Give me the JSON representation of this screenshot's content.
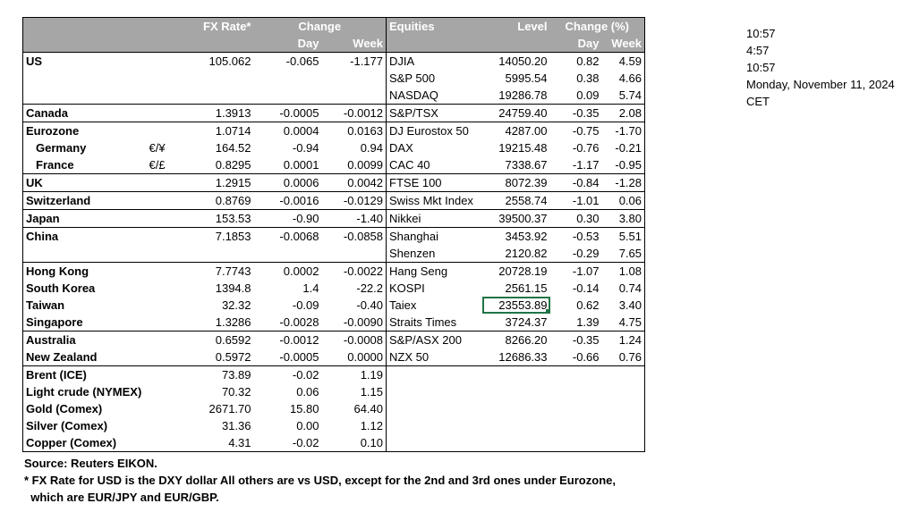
{
  "header": {
    "fx_rate": "FX Rate*",
    "change": "Change",
    "day": "Day",
    "week": "Week",
    "equities": "Equities",
    "level": "Level",
    "change_pct": "Change (%)",
    "day2": "Day",
    "week2": "Week"
  },
  "rows": [
    {
      "country": "US",
      "cur": "",
      "fx": "105.062",
      "chg_day": "-0.065",
      "chg_week": "-1.177",
      "eq": "DJIA",
      "level": "14050.20",
      "eq_day": "0.82",
      "eq_week": "4.59"
    },
    {
      "country": "",
      "cur": "",
      "fx": "",
      "chg_day": "",
      "chg_week": "",
      "eq": "S&P 500",
      "level": "5995.54",
      "eq_day": "0.38",
      "eq_week": "4.66"
    },
    {
      "country": "",
      "cur": "",
      "fx": "",
      "chg_day": "",
      "chg_week": "",
      "eq": "NASDAQ",
      "level": "19286.78",
      "eq_day": "0.09",
      "eq_week": "5.74"
    },
    {
      "country": "Canada",
      "cur": "",
      "fx": "1.3913",
      "chg_day": "-0.0005",
      "chg_week": "-0.0012",
      "eq": "S&P/TSX",
      "level": "24759.40",
      "eq_day": "-0.35",
      "eq_week": "2.08"
    },
    {
      "country": "Eurozone",
      "cur": "",
      "fx": "1.0714",
      "chg_day": "0.0004",
      "chg_week": "0.0163",
      "eq": "DJ Eurostox 50",
      "level": "4287.00",
      "eq_day": "-0.75",
      "eq_week": "-1.70"
    },
    {
      "country": "Germany",
      "cur": "€/¥",
      "fx": "164.52",
      "chg_day": "-0.94",
      "chg_week": "0.94",
      "eq": "DAX",
      "level": "19215.48",
      "eq_day": "-0.76",
      "eq_week": "-0.21"
    },
    {
      "country": "France",
      "cur": "€/£",
      "fx": "0.8295",
      "chg_day": "0.0001",
      "chg_week": "0.0099",
      "eq": "CAC 40",
      "level": "7338.67",
      "eq_day": "-1.17",
      "eq_week": "-0.95"
    },
    {
      "country": "UK",
      "cur": "",
      "fx": "1.2915",
      "chg_day": "0.0006",
      "chg_week": "0.0042",
      "eq": "FTSE 100",
      "level": "8072.39",
      "eq_day": "-0.84",
      "eq_week": "-1.28"
    },
    {
      "country": "Switzerland",
      "cur": "",
      "fx": "0.8769",
      "chg_day": "-0.0016",
      "chg_week": "-0.0129",
      "eq": "Swiss Mkt Index",
      "level": "2558.74",
      "eq_day": "-1.01",
      "eq_week": "0.06"
    },
    {
      "country": "Japan",
      "cur": "",
      "fx": "153.53",
      "chg_day": "-0.90",
      "chg_week": "-1.40",
      "eq": "Nikkei",
      "level": "39500.37",
      "eq_day": "0.30",
      "eq_week": "3.80"
    },
    {
      "country": "China",
      "cur": "",
      "fx": "7.1853",
      "chg_day": "-0.0068",
      "chg_week": "-0.0858",
      "eq": "Shanghai",
      "level": "3453.92",
      "eq_day": "-0.53",
      "eq_week": "5.51"
    },
    {
      "country": "",
      "cur": "",
      "fx": "",
      "chg_day": "",
      "chg_week": "",
      "eq": "Shenzen",
      "level": "2120.82",
      "eq_day": "-0.29",
      "eq_week": "7.65"
    },
    {
      "country": "Hong Kong",
      "cur": "",
      "fx": "7.7743",
      "chg_day": "0.0002",
      "chg_week": "-0.0022",
      "eq": "Hang Seng",
      "level": "20728.19",
      "eq_day": "-1.07",
      "eq_week": "1.08"
    },
    {
      "country": "South Korea",
      "cur": "",
      "fx": "1394.8",
      "chg_day": "1.4",
      "chg_week": "-22.2",
      "eq": "KOSPI",
      "level": "2561.15",
      "eq_day": "-0.14",
      "eq_week": "0.74"
    },
    {
      "country": "Taiwan",
      "cur": "",
      "fx": "32.32",
      "chg_day": "-0.09",
      "chg_week": "-0.40",
      "eq": "Taiex",
      "level": "23553.89",
      "eq_day": "0.62",
      "eq_week": "3.40"
    },
    {
      "country": "Singapore",
      "cur": "",
      "fx": "1.3286",
      "chg_day": "-0.0028",
      "chg_week": "-0.0090",
      "eq": "Straits Times",
      "level": "3724.37",
      "eq_day": "1.39",
      "eq_week": "4.75"
    },
    {
      "country": "Australia",
      "cur": "",
      "fx": "0.6592",
      "chg_day": "-0.0012",
      "chg_week": "-0.0008",
      "eq": "S&P/ASX  200",
      "level": "8266.20",
      "eq_day": "-0.35",
      "eq_week": "1.24"
    },
    {
      "country": "New Zealand",
      "cur": "",
      "fx": "0.5972",
      "chg_day": "-0.0005",
      "chg_week": "0.0000",
      "eq": "NZX 50",
      "level": "12686.33",
      "eq_day": "-0.66",
      "eq_week": "0.76"
    },
    {
      "country": "Brent (ICE)",
      "cur": "",
      "fx": "73.89",
      "chg_day": "-0.02",
      "chg_week": "1.19",
      "eq": "",
      "level": "",
      "eq_day": "",
      "eq_week": ""
    },
    {
      "country": "Light crude (NYMEX)",
      "cur": "",
      "fx": "70.32",
      "chg_day": "0.06",
      "chg_week": "1.15",
      "eq": "",
      "level": "",
      "eq_day": "",
      "eq_week": ""
    },
    {
      "country": "Gold (Comex)",
      "cur": "",
      "fx": "2671.70",
      "chg_day": "15.80",
      "chg_week": "64.40",
      "eq": "",
      "level": "",
      "eq_day": "",
      "eq_week": ""
    },
    {
      "country": "Silver (Comex)",
      "cur": "",
      "fx": "31.36",
      "chg_day": "0.00",
      "chg_week": "1.12",
      "eq": "",
      "level": "",
      "eq_day": "",
      "eq_week": ""
    },
    {
      "country": "Copper (Comex)",
      "cur": "",
      "fx": "4.31",
      "chg_day": "-0.02",
      "chg_week": "0.10",
      "eq": "",
      "level": "",
      "eq_day": "",
      "eq_week": ""
    }
  ],
  "notes": {
    "source": "Source:  Reuters EIKON.",
    "line1": "* FX Rate for USD is the DXY dollar  All others are vs USD, except for the 2nd and 3rd ones under Eurozone,",
    "line2": "  which are EUR/JPY and EUR/GBP."
  },
  "side": {
    "t1": "10:57",
    "t2": "4:57",
    "t3": "10:57",
    "date": "Monday, November 11, 2024",
    "tz": "CET"
  }
}
